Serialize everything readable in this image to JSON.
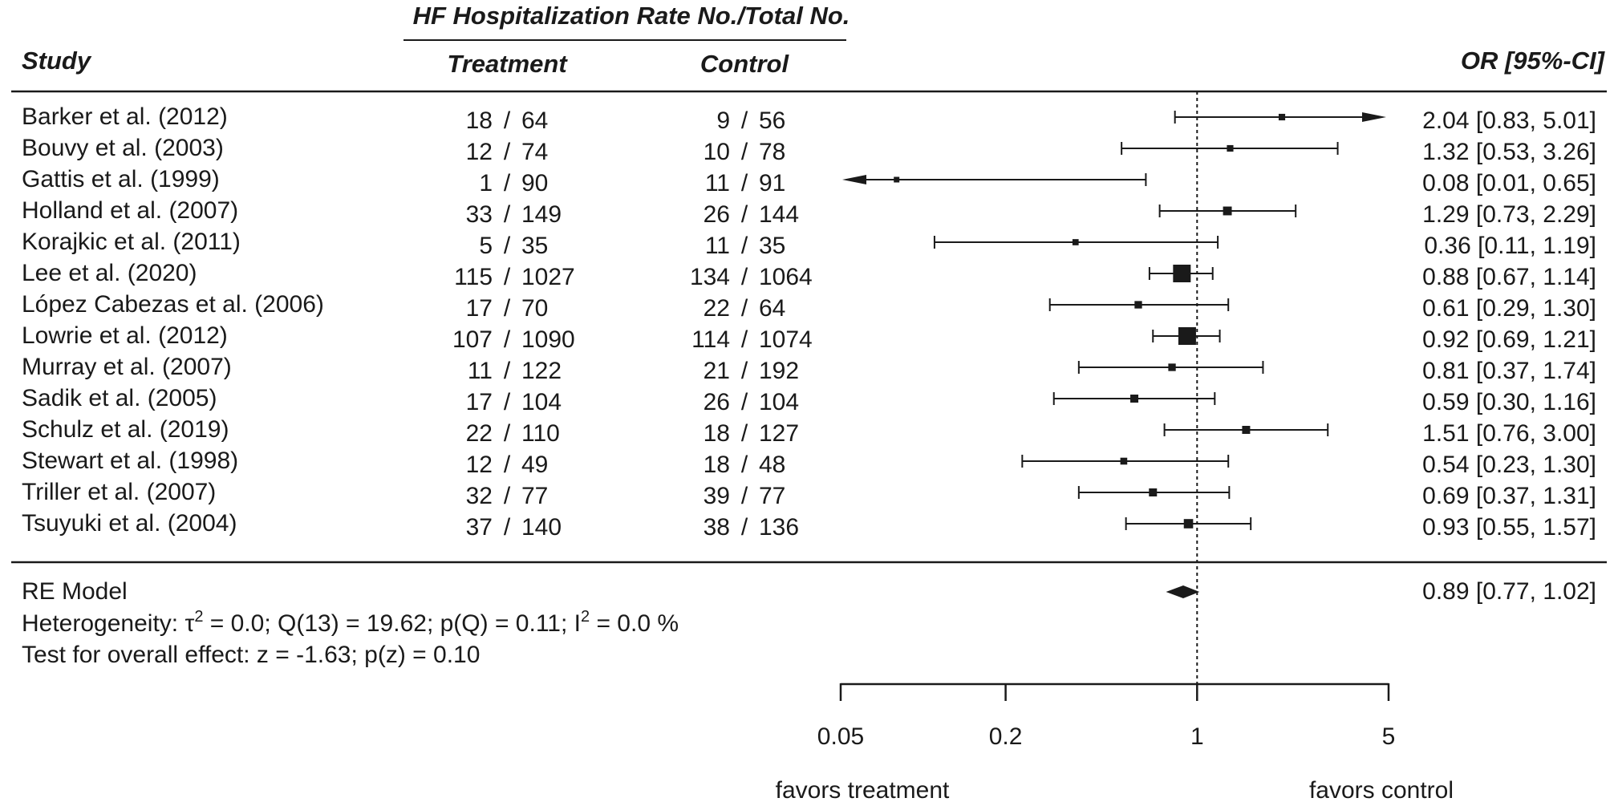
{
  "chart_data": {
    "type": "forest",
    "header": {
      "group_title": "HF Hospitalization Rate No./Total No.",
      "study": "Study",
      "treatment": "Treatment",
      "control": "Control",
      "effect": "OR [95%-CI]"
    },
    "studies": [
      {
        "name": "Barker et al. (2012)",
        "t_events": "18",
        "t_total": "64",
        "c_events": "9",
        "c_total": "56",
        "or": 2.04,
        "lo": 0.83,
        "hi": 5.01,
        "or_text": "2.04 [0.83, 5.01]",
        "weight": 0.4,
        "arrow_hi": true,
        "arrow_lo": false
      },
      {
        "name": "Bouvy et al. (2003)",
        "t_events": "12",
        "t_total": "74",
        "c_events": "10",
        "c_total": "78",
        "or": 1.32,
        "lo": 0.53,
        "hi": 3.26,
        "or_text": "1.32 [0.53, 3.26]",
        "weight": 0.4,
        "arrow_hi": false,
        "arrow_lo": false
      },
      {
        "name": "Gattis et al. (1999)",
        "t_events": "1",
        "t_total": "90",
        "c_events": "11",
        "c_total": "91",
        "or": 0.08,
        "lo": 0.01,
        "hi": 0.65,
        "or_text": "0.08 [0.01, 0.65]",
        "weight": 0.35,
        "arrow_hi": false,
        "arrow_lo": true
      },
      {
        "name": "Holland et al. (2007)",
        "t_events": "33",
        "t_total": "149",
        "c_events": "26",
        "c_total": "144",
        "or": 1.29,
        "lo": 0.73,
        "hi": 2.29,
        "or_text": "1.29 [0.73, 2.29]",
        "weight": 0.52,
        "arrow_hi": false,
        "arrow_lo": false
      },
      {
        "name": "Korajkic et al. (2011)",
        "t_events": "5",
        "t_total": "35",
        "c_events": "11",
        "c_total": "35",
        "or": 0.36,
        "lo": 0.11,
        "hi": 1.19,
        "or_text": "0.36 [0.11, 1.19]",
        "weight": 0.38,
        "arrow_hi": false,
        "arrow_lo": false
      },
      {
        "name": "Lee et al. (2020)",
        "t_events": "115",
        "t_total": "/1027",
        "c_events": "134",
        "c_total": "/1064",
        "or": 0.88,
        "lo": 0.67,
        "hi": 1.14,
        "or_text": "0.88 [0.67, 1.14]",
        "weight": 1.0,
        "arrow_hi": false,
        "arrow_lo": false
      },
      {
        "name": "López Cabezas et al. (2006)",
        "t_events": "17",
        "t_total": "70",
        "c_events": "22",
        "c_total": "64",
        "or": 0.61,
        "lo": 0.29,
        "hi": 1.3,
        "or_text": "0.61 [0.29, 1.30]",
        "weight": 0.45,
        "arrow_hi": false,
        "arrow_lo": false
      },
      {
        "name": "Lowrie et al. (2012)",
        "t_events": "107",
        "t_total": "/1090",
        "c_events": "114",
        "c_total": "/1074",
        "or": 0.92,
        "lo": 0.69,
        "hi": 1.21,
        "or_text": "0.92 [0.69, 1.21]",
        "weight": 1.0,
        "arrow_hi": false,
        "arrow_lo": false
      },
      {
        "name": "Murray et al. (2007)",
        "t_events": "11",
        "t_total": "122",
        "c_events": "21",
        "c_total": "192",
        "or": 0.81,
        "lo": 0.37,
        "hi": 1.74,
        "or_text": "0.81 [0.37, 1.74]",
        "weight": 0.45,
        "arrow_hi": false,
        "arrow_lo": false
      },
      {
        "name": "Sadik et al. (2005)",
        "t_events": "17",
        "t_total": "104",
        "c_events": "26",
        "c_total": "104",
        "or": 0.59,
        "lo": 0.3,
        "hi": 1.16,
        "or_text": "0.59 [0.30, 1.16]",
        "weight": 0.48,
        "arrow_hi": false,
        "arrow_lo": false
      },
      {
        "name": "Schulz et al. (2019)",
        "t_events": "22",
        "t_total": "110",
        "c_events": "18",
        "c_total": "127",
        "or": 1.51,
        "lo": 0.76,
        "hi": 3.0,
        "or_text": "1.51 [0.76, 3.00]",
        "weight": 0.48,
        "arrow_hi": false,
        "arrow_lo": false
      },
      {
        "name": "Stewart et al. (1998)",
        "t_events": "12",
        "t_total": "49",
        "c_events": "18",
        "c_total": "48",
        "or": 0.54,
        "lo": 0.23,
        "hi": 1.3,
        "or_text": "0.54 [0.23, 1.30]",
        "weight": 0.42,
        "arrow_hi": false,
        "arrow_lo": false
      },
      {
        "name": "Triller et al. (2007)",
        "t_events": "32",
        "t_total": "77",
        "c_events": "39",
        "c_total": "77",
        "or": 0.69,
        "lo": 0.37,
        "hi": 1.31,
        "or_text": "0.69 [0.37, 1.31]",
        "weight": 0.48,
        "arrow_hi": false,
        "arrow_lo": false
      },
      {
        "name": "Tsuyuki et al. (2004)",
        "t_events": "37",
        "t_total": "140",
        "c_events": "38",
        "c_total": "136",
        "or": 0.93,
        "lo": 0.55,
        "hi": 1.57,
        "or_text": "0.93 [0.55, 1.57]",
        "weight": 0.55,
        "arrow_hi": false,
        "arrow_lo": false
      }
    ],
    "pooled": {
      "label": "RE Model",
      "or": 0.89,
      "lo": 0.77,
      "hi": 1.02,
      "or_text": "0.89 [0.77, 1.02]"
    },
    "heterogeneity": {
      "prefix": "Heterogeneity: τ",
      "sup1": "2",
      "mid": " = 0.0; Q(13) = 19.62; p(Q) = 0.11; I",
      "sup2": "2",
      "suffix": " = 0.0 %"
    },
    "overall_test": "Test for overall effect: z = -1.63; p(z) = 0.10",
    "x_axis": {
      "scale": "log",
      "ticks": [
        0.05,
        0.2,
        1,
        5
      ],
      "tick_labels": [
        "0.05",
        "0.2",
        "1",
        "5"
      ],
      "reference": 1,
      "left_label": "favors treatment",
      "right_label": "favors control"
    }
  }
}
